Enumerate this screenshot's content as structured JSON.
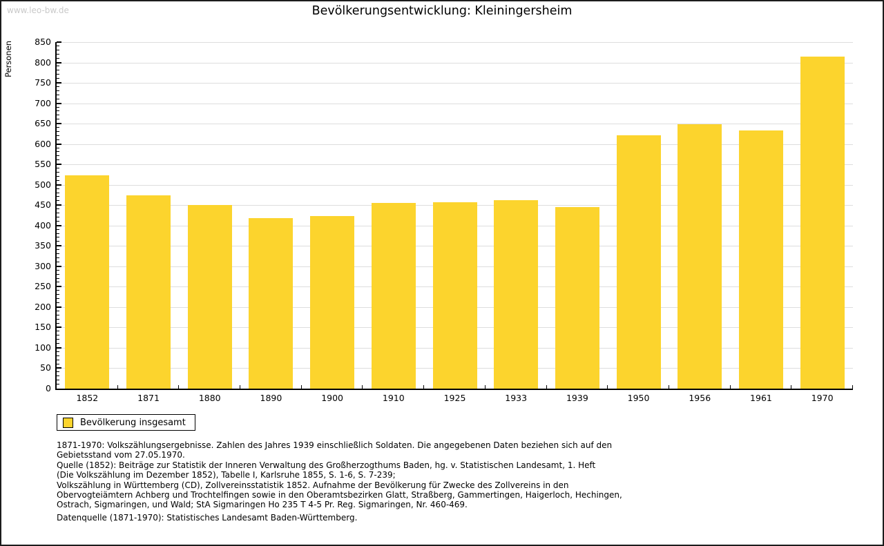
{
  "page": {
    "watermark": "www.leo-bw.de",
    "title": "Bevölkerungsentwicklung: Kleiningersheim"
  },
  "chart_data": {
    "type": "bar",
    "title": "Bevölkerungsentwicklung: Kleiningersheim",
    "xlabel": "",
    "ylabel": "Personen",
    "categories": [
      "1852",
      "1871",
      "1880",
      "1890",
      "1900",
      "1910",
      "1925",
      "1933",
      "1939",
      "1950",
      "1956",
      "1961",
      "1970"
    ],
    "values": [
      523,
      474,
      451,
      418,
      424,
      455,
      457,
      463,
      445,
      622,
      648,
      633,
      814
    ],
    "ylim": [
      0,
      850
    ],
    "ytick_step": 50,
    "minor_tick_step": 10,
    "grid": true,
    "legend_position": "bottom-left",
    "bar_color": "#FCD42D",
    "gridline_color": "#dddddd",
    "series_name": "Bevölkerung insgesamt"
  },
  "legend": {
    "label": "Bevölkerung insgesamt"
  },
  "footnotes": {
    "lines": [
      "1871-1970: Volkszählungsergebnisse. Zahlen des Jahres 1939 einschließlich Soldaten. Die angegebenen Daten beziehen sich auf den",
      "Gebietsstand vom 27.05.1970.",
      "Quelle (1852): Beiträge zur Statistik der Inneren Verwaltung des Großherzogthums Baden, hg. v. Statistischen Landesamt, 1. Heft",
      "(Die Volkszählung im Dezember 1852), Tabelle I, Karlsruhe 1855, S. 1-6, S. 7-239;",
      "Volkszählung in Württemberg (CD), Zollvereinsstatistik 1852. Aufnahme der Bevölkerung für Zwecke des Zollvereins in den",
      "Obervogteiämtern Achberg und Trochtelfingen sowie in den Oberamtsbezirken Glatt, Straßberg, Gammertingen, Haigerloch, Hechingen,",
      "Ostrach, Sigmaringen, und Wald; StA Sigmaringen Ho 235 T 4-5 Pr. Reg. Sigmaringen, Nr. 460-469."
    ],
    "datasource": "Datenquelle (1871-1970): Statistisches Landesamt Baden-Württemberg."
  }
}
